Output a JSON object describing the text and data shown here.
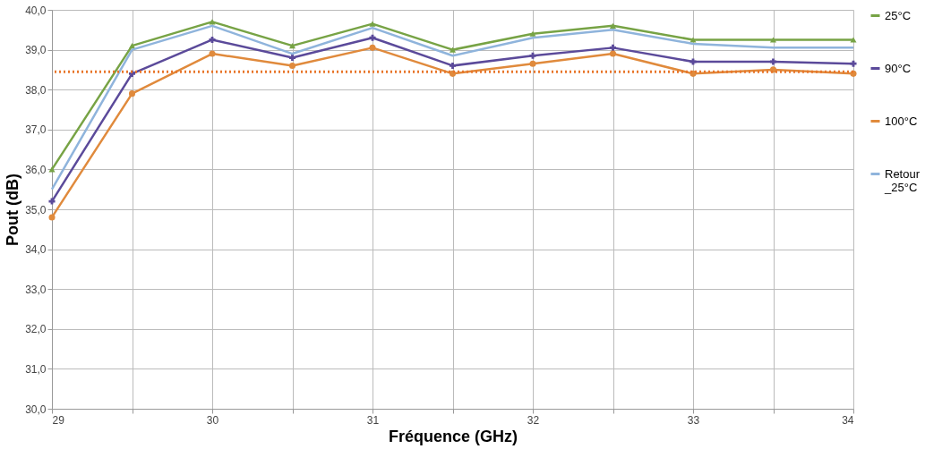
{
  "chart_data": {
    "type": "line",
    "xlabel": "Fréquence (GHz)",
    "ylabel": "Pout (dB)",
    "x": [
      29,
      29.5,
      30,
      30.5,
      31,
      31.5,
      32,
      32.5,
      33,
      33.5,
      34
    ],
    "series": [
      {
        "name": "25°C",
        "color": "#77a345",
        "marker": "triangle",
        "values": [
          36.0,
          39.1,
          39.7,
          39.1,
          39.65,
          39.0,
          39.4,
          39.6,
          39.25,
          39.25,
          39.25
        ]
      },
      {
        "name": "90°C",
        "color": "#5b4a9a",
        "marker": "cross",
        "values": [
          35.2,
          38.4,
          39.25,
          38.8,
          39.3,
          38.6,
          38.85,
          39.05,
          38.7,
          38.7,
          38.65
        ]
      },
      {
        "name": "100°C",
        "color": "#e08a3c",
        "marker": "circle",
        "values": [
          34.8,
          37.9,
          38.9,
          38.6,
          39.05,
          38.4,
          38.65,
          38.9,
          38.4,
          38.5,
          38.4
        ]
      },
      {
        "name": "Retour\n_25°C",
        "color": "#8fb4dc",
        "marker": "none",
        "values": [
          35.5,
          39.0,
          39.6,
          38.9,
          39.55,
          38.85,
          39.3,
          39.5,
          39.15,
          39.05,
          39.05
        ]
      }
    ],
    "xlim": [
      29,
      34
    ],
    "xticks": [
      29,
      {
        "value": 29.5,
        "label": null
      },
      30,
      {
        "value": 30.5,
        "label": null
      },
      31,
      {
        "value": 31.5,
        "label": null
      },
      32,
      {
        "value": 32.5,
        "label": null
      },
      33,
      {
        "value": 33.5,
        "label": null
      },
      34
    ],
    "ylim": [
      30,
      40
    ],
    "yticks": [
      {
        "value": 30,
        "label": "30,0"
      },
      {
        "value": 31,
        "label": "31,0"
      },
      {
        "value": 32,
        "label": "32,0"
      },
      {
        "value": 33,
        "label": "33,0"
      },
      {
        "value": 34,
        "label": "34,0"
      },
      {
        "value": 35,
        "label": "35,0"
      },
      {
        "value": 36,
        "label": "36,0"
      },
      {
        "value": 37,
        "label": "37,0"
      },
      {
        "value": 38,
        "label": "38,0"
      },
      {
        "value": 39,
        "label": "39,0"
      },
      {
        "value": 40,
        "label": "40,0"
      }
    ],
    "ref_lines": [
      {
        "axis": "y",
        "value": 38.45,
        "color": "#e8762a",
        "line_style": "dotted"
      }
    ],
    "grid": true,
    "legend": "right"
  }
}
